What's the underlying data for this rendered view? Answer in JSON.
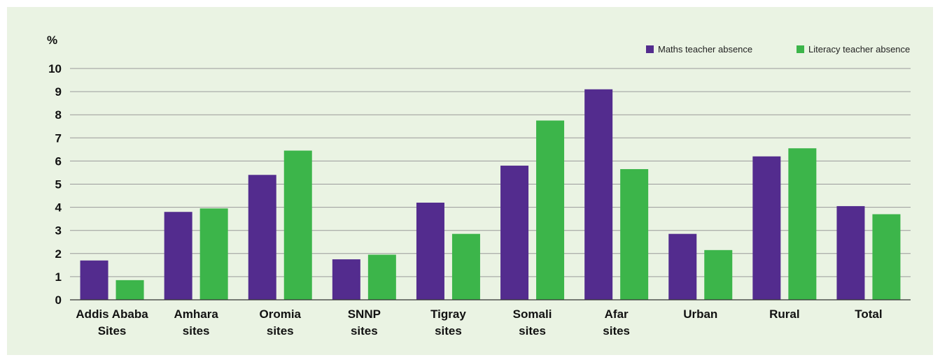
{
  "chart_data": {
    "type": "bar",
    "ylabel": "%",
    "ylim": [
      0,
      10
    ],
    "yticks": [
      0,
      1,
      2,
      3,
      4,
      5,
      6,
      7,
      8,
      9,
      10
    ],
    "grid": true,
    "legend_position": "top-right",
    "categories": [
      [
        "Addis Ababa",
        "Sites"
      ],
      [
        "Amhara",
        "sites"
      ],
      [
        "Oromia",
        "sites"
      ],
      [
        "SNNP",
        "sites"
      ],
      [
        "Tigray",
        "sites"
      ],
      [
        "Somali",
        "sites"
      ],
      [
        "Afar",
        "sites"
      ],
      [
        "Urban"
      ],
      [
        "Rural"
      ],
      [
        "Total"
      ]
    ],
    "series": [
      {
        "name": "Maths teacher absence",
        "color": "#532c8e",
        "values": [
          1.7,
          3.8,
          5.4,
          1.75,
          4.2,
          5.8,
          9.1,
          2.85,
          6.2,
          4.05
        ]
      },
      {
        "name": "Literacy teacher absence",
        "color": "#3cb54a",
        "values": [
          0.85,
          3.95,
          6.45,
          1.95,
          2.85,
          7.75,
          5.65,
          2.15,
          6.55,
          3.7
        ]
      }
    ]
  }
}
